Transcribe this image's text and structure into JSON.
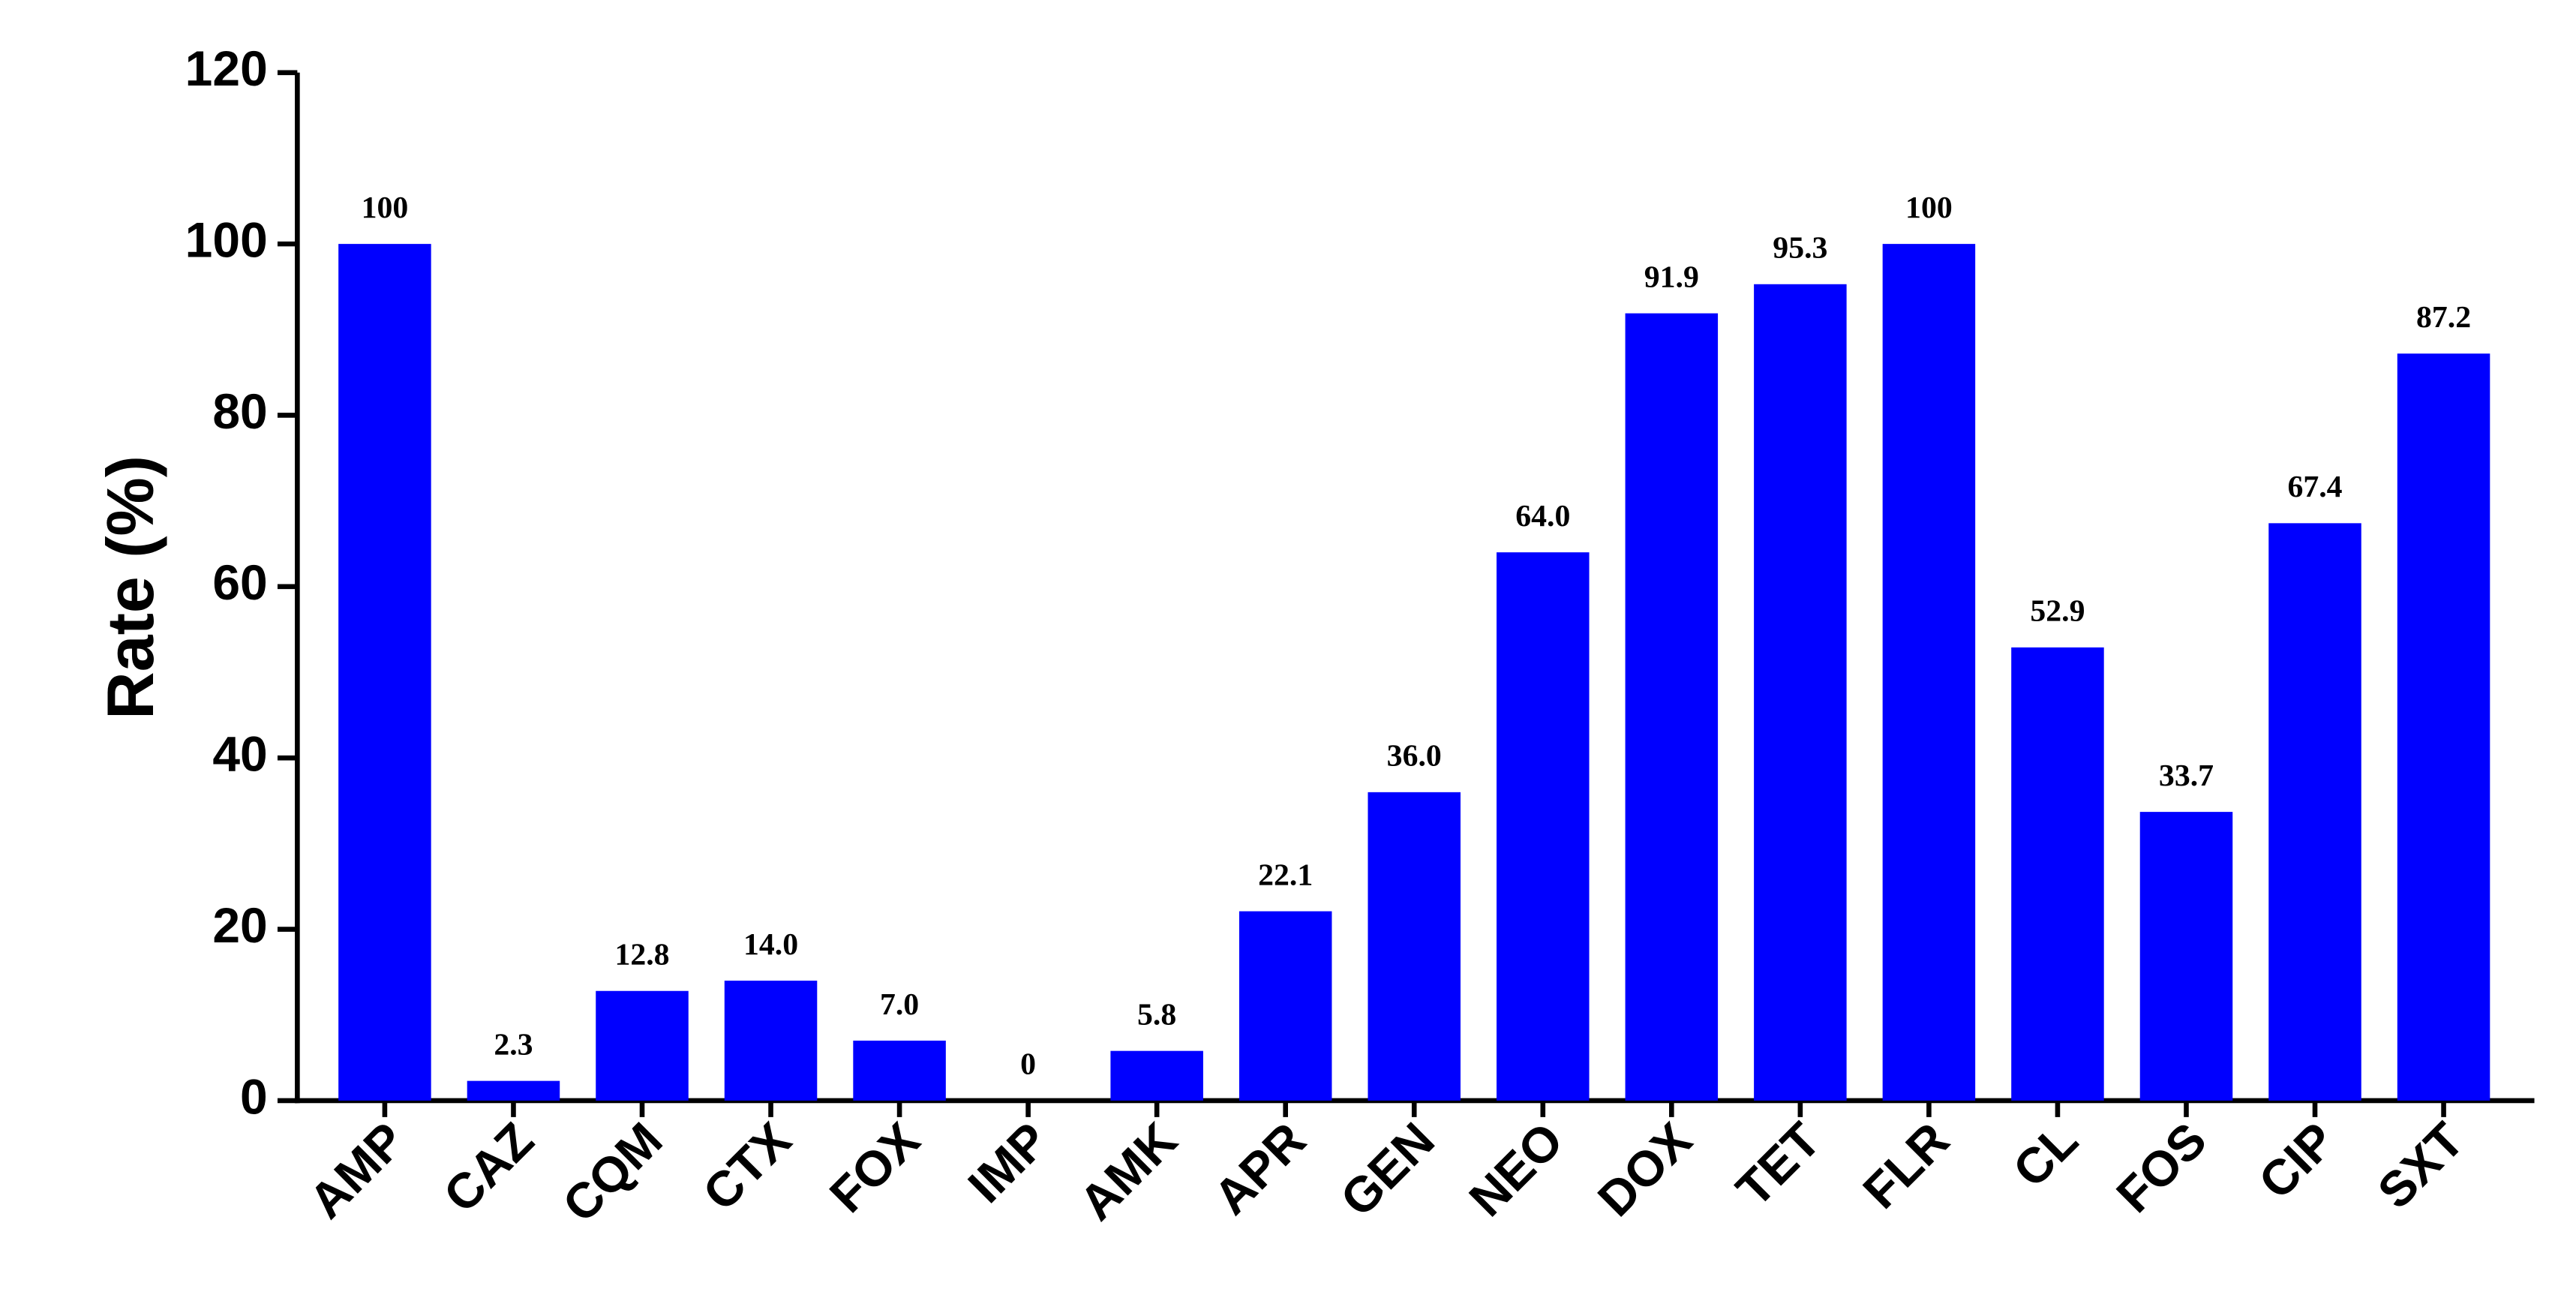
{
  "chart_data": {
    "type": "bar",
    "y_label": "Rate (%)",
    "categories": [
      "AMP",
      "CAZ",
      "CQM",
      "CTX",
      "FOX",
      "IMP",
      "AMK",
      "APR",
      "GEN",
      "NEO",
      "DOX",
      "TET",
      "FLR",
      "CL",
      "FOS",
      "CIP",
      "SXT"
    ],
    "values": [
      100,
      2.3,
      12.8,
      14.0,
      7.0,
      0,
      5.8,
      22.1,
      36.0,
      64.0,
      91.9,
      95.3,
      100,
      52.9,
      33.7,
      67.4,
      87.2
    ],
    "value_labels": [
      "100",
      "2.3",
      "12.8",
      "14.0",
      "7.0",
      "0",
      "5.8",
      "22.1",
      "36.0",
      "64.0",
      "91.9",
      "95.3",
      "100",
      "52.9",
      "33.7",
      "67.4",
      "87.2"
    ],
    "color": "#0000ff",
    "ylim": [
      0,
      120
    ],
    "yticks": [
      0,
      20,
      40,
      60,
      80,
      100,
      120
    ]
  }
}
